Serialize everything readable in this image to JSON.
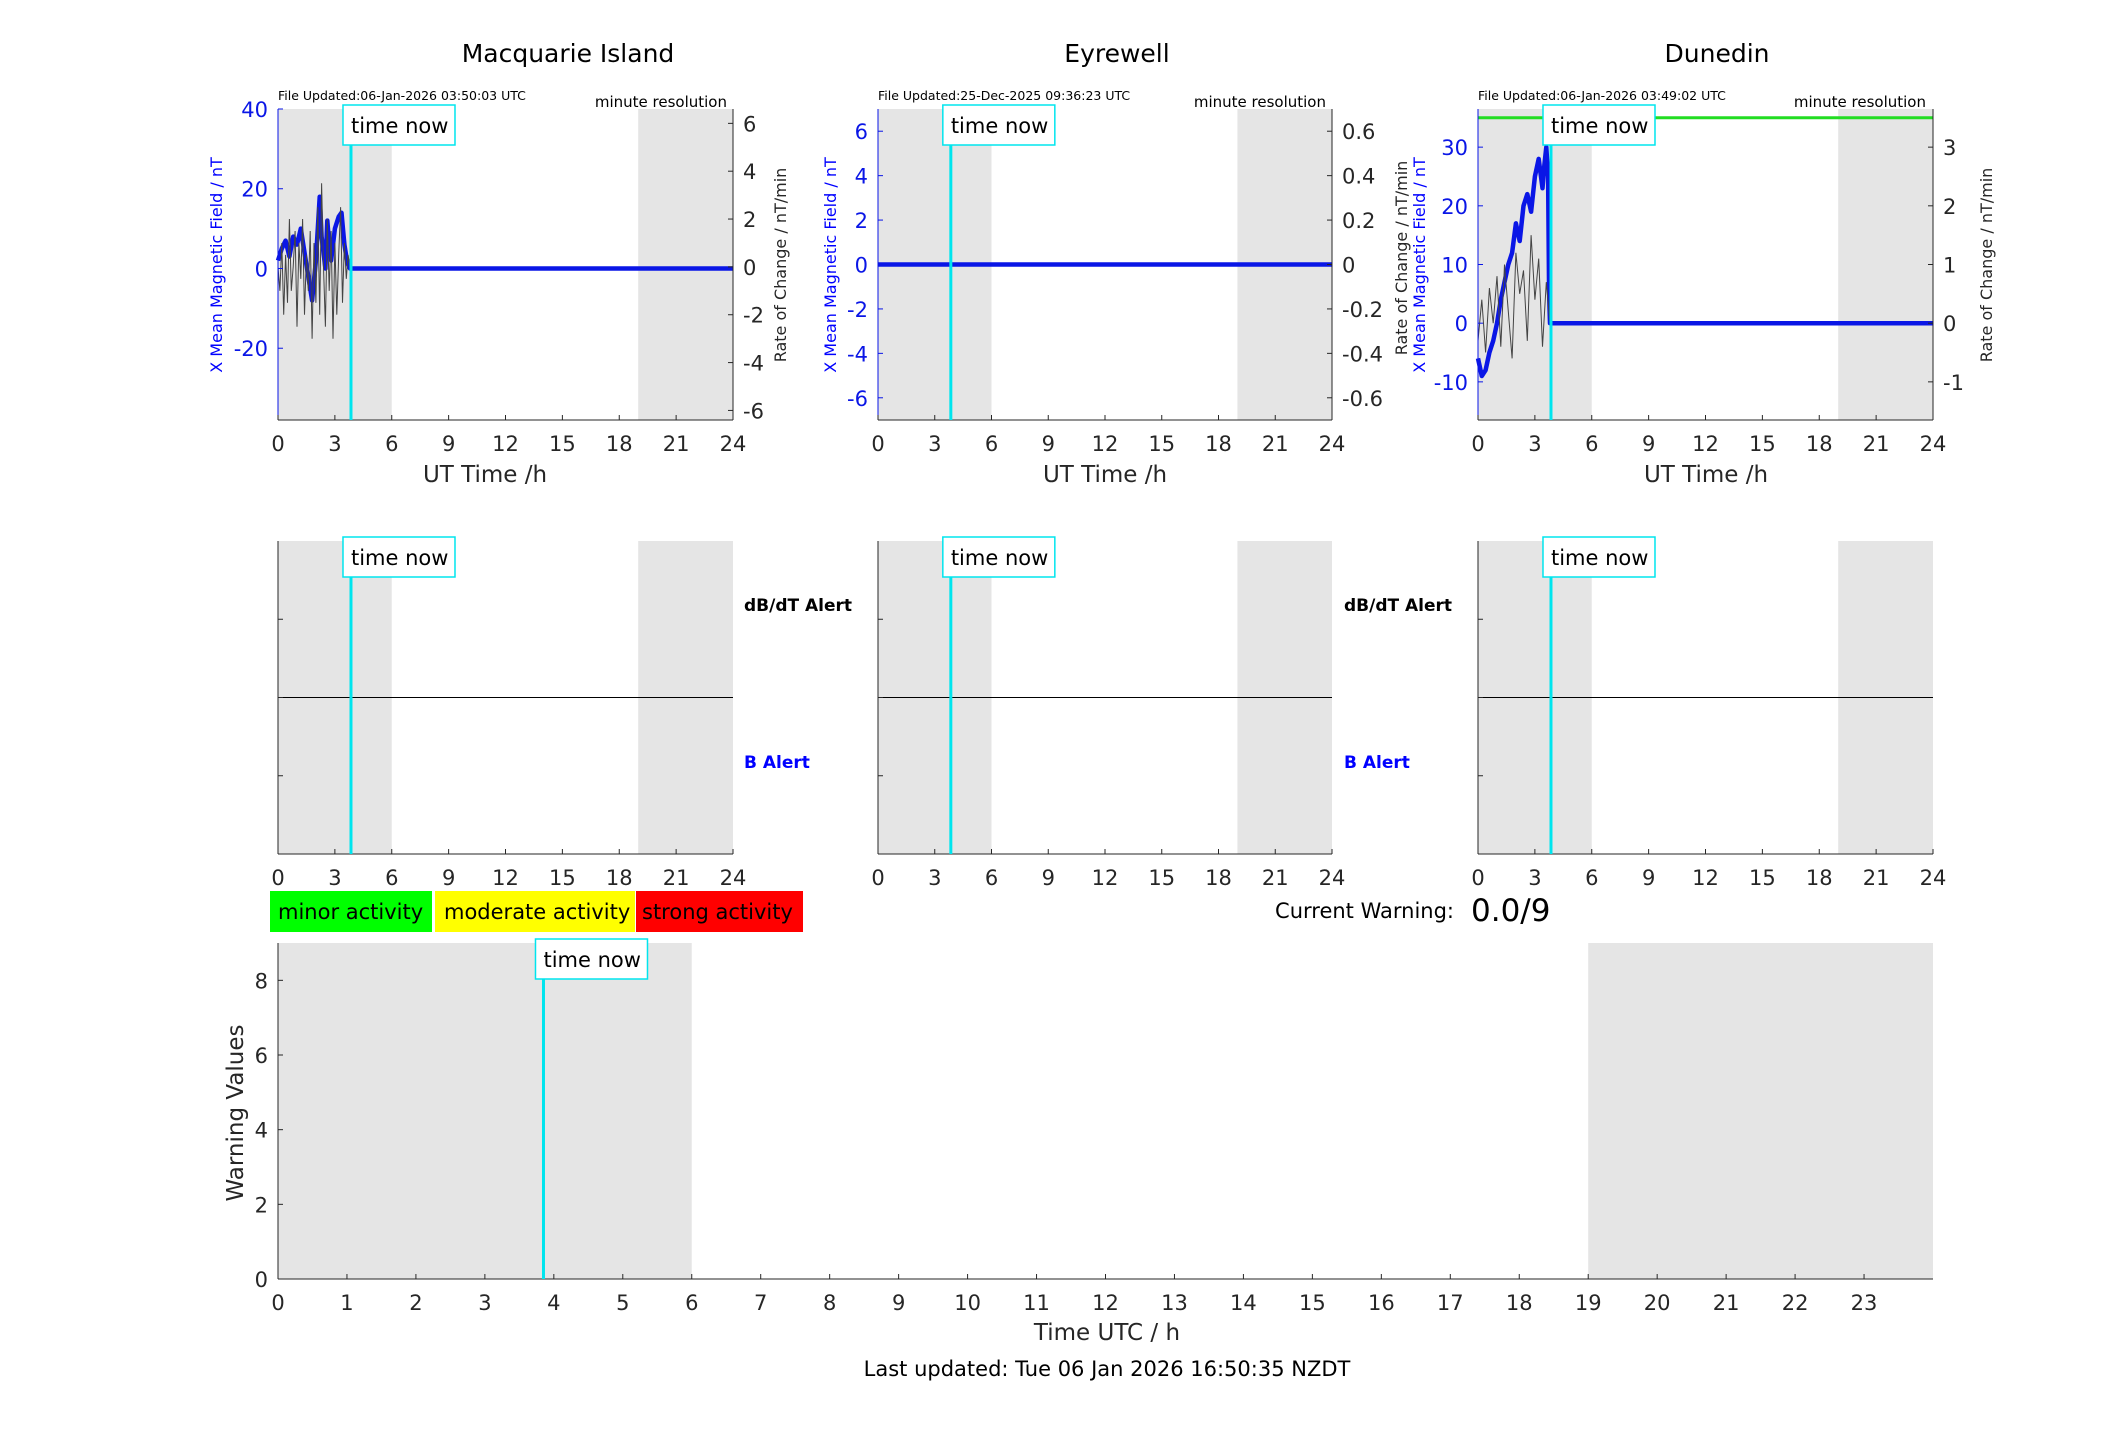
{
  "colors": {
    "background": "#ffffff",
    "night_shade": "#e5e5e5",
    "time_now": "#00e5ee",
    "b_field": "#0a16e6",
    "rate": "#444444",
    "dunedin_threshold": "#22dd22",
    "b_alert": "#0000ff",
    "axis": "#262626",
    "minor": "#00ff00",
    "moderate": "#ffff00",
    "strong": "#ff0000"
  },
  "common": {
    "time_now_label": "time now",
    "minute_resolution": "minute resolution",
    "ut_xlabel": "UT Time /h",
    "x_ticks": [
      "0",
      "3",
      "6",
      "9",
      "12",
      "15",
      "18",
      "21",
      "24"
    ],
    "dbdt_alert_label": "dB/dT Alert",
    "b_alert_label": "B Alert",
    "y_left_label": "X Mean Magnetic Field / nT",
    "y_right_label": "Rate of Change / nT/min"
  },
  "legend": {
    "minor": "minor activity",
    "moderate": "moderate activity",
    "strong": "strong activity"
  },
  "current_warning": {
    "label": "Current Warning:",
    "value": "0.0/9"
  },
  "footer": {
    "last_updated": "Last updated: Tue 06 Jan 2026 16:50:35 NZDT"
  },
  "chart_data": [
    {
      "type": "line",
      "title": "Macquarie Island",
      "file_updated": "File Updated:06-Jan-2026 03:50:03 UTC",
      "xlim": [
        0,
        24
      ],
      "ylim_left": [
        -38,
        40
      ],
      "ylim_right": [
        -6.4,
        6.6
      ],
      "left_ticks": [
        -20,
        0,
        20,
        40
      ],
      "right_ticks": [
        -6,
        -4,
        -2,
        0,
        2,
        4,
        6
      ],
      "night_bands": [
        [
          0,
          6
        ],
        [
          19,
          24
        ]
      ],
      "time_now": 3.85,
      "series": [
        {
          "axis": "left",
          "x": [
            0,
            0.2,
            0.4,
            0.6,
            0.8,
            1.0,
            1.2,
            1.4,
            1.6,
            1.8,
            2.0,
            2.1,
            2.2,
            2.3,
            2.4,
            2.5,
            2.6,
            2.7,
            2.8,
            3.0,
            3.2,
            3.35,
            3.5,
            3.6,
            3.7,
            3.8,
            24
          ],
          "y": [
            2,
            5,
            7,
            3,
            8,
            6,
            10,
            4,
            -2,
            -8,
            2,
            10,
            18,
            8,
            4,
            0,
            12,
            6,
            2,
            10,
            13,
            14,
            6,
            3,
            1,
            0,
            0
          ]
        },
        {
          "axis": "right",
          "x": [
            0,
            0.1,
            0.2,
            0.3,
            0.4,
            0.5,
            0.6,
            0.7,
            0.8,
            0.9,
            1.0,
            1.1,
            1.2,
            1.3,
            1.4,
            1.5,
            1.6,
            1.7,
            1.8,
            1.9,
            2.0,
            2.1,
            2.2,
            2.3,
            2.4,
            2.5,
            2.6,
            2.7,
            2.8,
            2.9,
            3.0,
            3.1,
            3.2,
            3.3,
            3.4,
            3.5,
            3.6,
            3.7,
            3.8
          ],
          "y": [
            0,
            -1,
            1,
            -2,
            0.5,
            -1.5,
            2,
            -1,
            0,
            1.5,
            -2.5,
            1,
            -0.5,
            2,
            -2,
            0.5,
            -1,
            1.5,
            -3,
            1,
            -1.5,
            2.5,
            -2,
            3.5,
            0,
            -2.5,
            2,
            -1,
            1.5,
            -3,
            1,
            -2,
            0.5,
            2.5,
            -1.5,
            1,
            -0.5,
            0.5,
            0
          ]
        }
      ]
    },
    {
      "type": "line",
      "title": "Eyrewell",
      "file_updated": "File Updated:25-Dec-2025 09:36:23 UTC",
      "xlim": [
        0,
        24
      ],
      "ylim_left": [
        -7,
        7
      ],
      "ylim_right": [
        -0.7,
        0.7
      ],
      "left_ticks": [
        -6,
        -4,
        -2,
        0,
        2,
        4,
        6
      ],
      "right_ticks": [
        -0.6,
        -0.4,
        -0.2,
        0,
        0.2,
        0.4,
        0.6
      ],
      "night_bands": [
        [
          0,
          6
        ],
        [
          19,
          24
        ]
      ],
      "time_now": 3.85,
      "series": [
        {
          "axis": "left",
          "x": [
            0,
            24
          ],
          "y": [
            0,
            0
          ]
        }
      ]
    },
    {
      "type": "line",
      "title": "Dunedin",
      "file_updated": "File Updated:06-Jan-2026 03:49:02 UTC",
      "xlim": [
        0,
        24
      ],
      "ylim_left": [
        -16.5,
        36.5
      ],
      "ylim_right": [
        -1.65,
        3.65
      ],
      "left_ticks": [
        -10,
        0,
        10,
        20,
        30
      ],
      "right_ticks": [
        -1,
        0,
        1,
        2,
        3
      ],
      "night_bands": [
        [
          0,
          6
        ],
        [
          19,
          24
        ]
      ],
      "time_now": 3.85,
      "threshold_line": 35,
      "series": [
        {
          "axis": "left",
          "x": [
            0,
            0.2,
            0.4,
            0.6,
            0.8,
            1.0,
            1.2,
            1.4,
            1.6,
            1.8,
            2.0,
            2.2,
            2.4,
            2.6,
            2.8,
            3.0,
            3.2,
            3.4,
            3.5,
            3.6,
            3.7,
            3.75,
            3.8,
            24
          ],
          "y": [
            -6,
            -9,
            -8,
            -5,
            -3,
            0,
            4,
            7,
            10,
            12,
            17,
            14,
            20,
            22,
            19,
            25,
            28,
            23,
            27,
            30,
            25,
            5,
            0,
            0
          ]
        },
        {
          "axis": "right",
          "x": [
            0,
            0.2,
            0.4,
            0.6,
            0.8,
            1.0,
            1.2,
            1.4,
            1.6,
            1.8,
            2.0,
            2.2,
            2.4,
            2.6,
            2.8,
            3.0,
            3.2,
            3.4,
            3.6,
            3.8
          ],
          "y": [
            -0.3,
            0.4,
            -0.5,
            0.6,
            0,
            0.8,
            -0.4,
            1,
            0.2,
            -0.6,
            1.2,
            0.5,
            0.9,
            -0.3,
            1.5,
            0.4,
            1.1,
            -0.4,
            0.7,
            0
          ]
        }
      ]
    },
    {
      "type": "line",
      "title": "",
      "xlabel": "Time UTC / h",
      "ylabel": "Warning Values",
      "xlim": [
        0,
        24
      ],
      "ylim": [
        0,
        9
      ],
      "x_ticks": [
        0,
        1,
        2,
        3,
        4,
        5,
        6,
        7,
        8,
        9,
        10,
        11,
        12,
        13,
        14,
        15,
        16,
        17,
        18,
        19,
        20,
        21,
        22,
        23
      ],
      "y_ticks": [
        0,
        2,
        4,
        6,
        8
      ],
      "night_bands": [
        [
          0,
          6
        ],
        [
          19,
          24
        ]
      ],
      "time_now": 3.85,
      "series": []
    }
  ]
}
